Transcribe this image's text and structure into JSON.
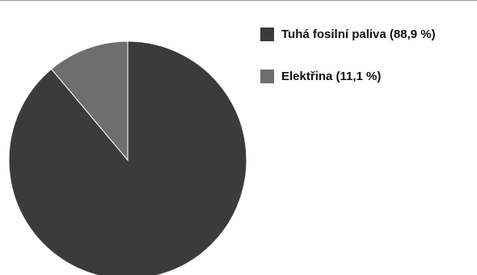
{
  "chart_data": {
    "type": "pie",
    "title": "",
    "categories": [
      "Tuhá fosilní paliva",
      "Elektřina"
    ],
    "values": [
      88.9,
      11.1
    ],
    "value_unit": "%",
    "legend_position": "right",
    "start_angle_description": "12 o'clock, clockwise after second slice",
    "slices": [
      {
        "label": "Tuhá fosilní paliva (88,9 %)",
        "value": 88.9,
        "color": "#3b3b3b"
      },
      {
        "label": "Elektřina (11,1 %)",
        "value": 11.1,
        "color": "#6e6e6e"
      }
    ]
  }
}
